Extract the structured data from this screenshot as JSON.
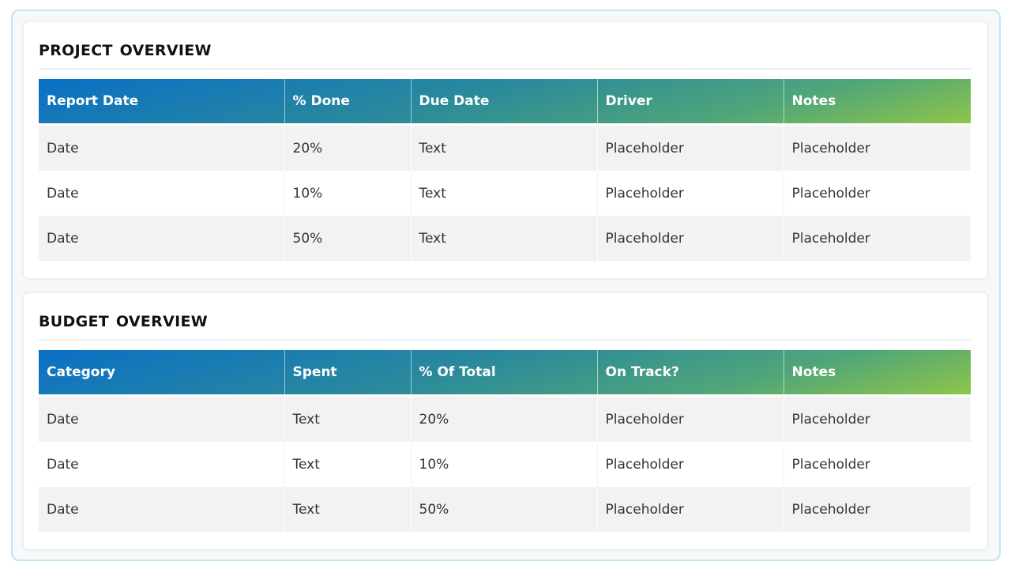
{
  "project": {
    "title": "PROJECT OVERVIEW",
    "headers": [
      "Report Date",
      "% Done",
      "Due Date",
      "Driver",
      "Notes"
    ],
    "rows": [
      [
        "Date",
        "20%",
        "Text",
        "Placeholder",
        "Placeholder"
      ],
      [
        "Date",
        "10%",
        "Text",
        "Placeholder",
        "Placeholder"
      ],
      [
        "Date",
        "50%",
        "Text",
        "Placeholder",
        "Placeholder"
      ]
    ]
  },
  "budget": {
    "title": "BUDGET OVERVIEW",
    "headers": [
      "Category",
      "Spent",
      "% Of Total",
      "On Track?",
      "Notes"
    ],
    "rows": [
      [
        "Date",
        "Text",
        "20%",
        "Placeholder",
        "Placeholder"
      ],
      [
        "Date",
        "Text",
        "10%",
        "Placeholder",
        "Placeholder"
      ],
      [
        "Date",
        "Text",
        "50%",
        "Placeholder",
        "Placeholder"
      ]
    ]
  },
  "colors": {
    "header_gradient": [
      "#0a6fc6",
      "#2b8a9b",
      "#4fa57a",
      "#8ec549"
    ],
    "row_shade": "#f2f2f2",
    "frame_border": "#bfe6f2"
  }
}
